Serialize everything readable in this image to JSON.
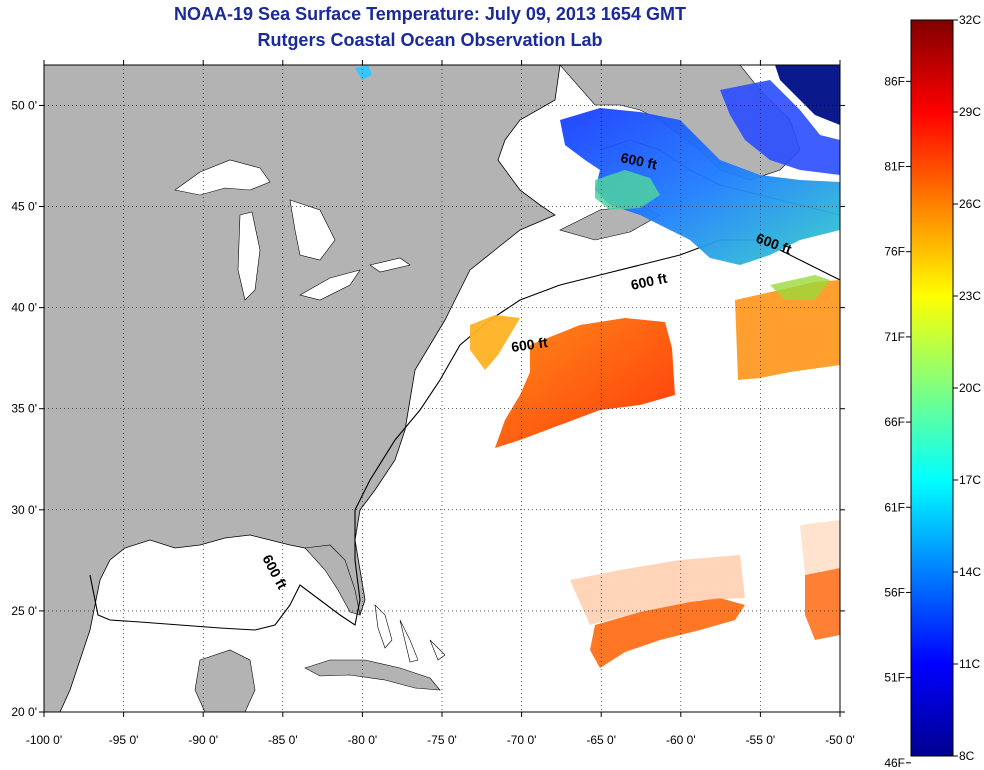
{
  "header": {
    "title": "NOAA-19 Sea Surface Temperature:  July 09, 2013 1654 GMT",
    "subtitle": "Rutgers Coastal Ocean Observation Lab"
  },
  "map": {
    "lon_range": [
      -100,
      -50
    ],
    "lat_range": [
      20,
      52
    ],
    "lon_ticks": [
      "-100 0'",
      "-95 0'",
      "-90 0'",
      "-85 0'",
      "-80 0'",
      "-75 0'",
      "-70 0'",
      "-65 0'",
      "-60 0'",
      "-55 0'",
      "-50 0'"
    ],
    "lat_ticks": [
      "20 0'",
      "25 0'",
      "30 0'",
      "35 0'",
      "40 0'",
      "45 0'",
      "50 0'"
    ],
    "contour_labels": [
      "600 ft",
      "600 ft",
      "600 ft",
      "600 ft",
      "600 ft"
    ],
    "land_color": "#b3b3b3",
    "grid": true
  },
  "colorbar": {
    "celsius_labels": [
      "32C",
      "29C",
      "26C",
      "23C",
      "20C",
      "17C",
      "14C",
      "11C",
      "8C"
    ],
    "fahrenheit_labels": [
      "86F",
      "81F",
      "76F",
      "71F",
      "66F",
      "61F",
      "56F",
      "51F",
      "46F"
    ],
    "colormap": "jet",
    "range_c": [
      8,
      32
    ]
  }
}
